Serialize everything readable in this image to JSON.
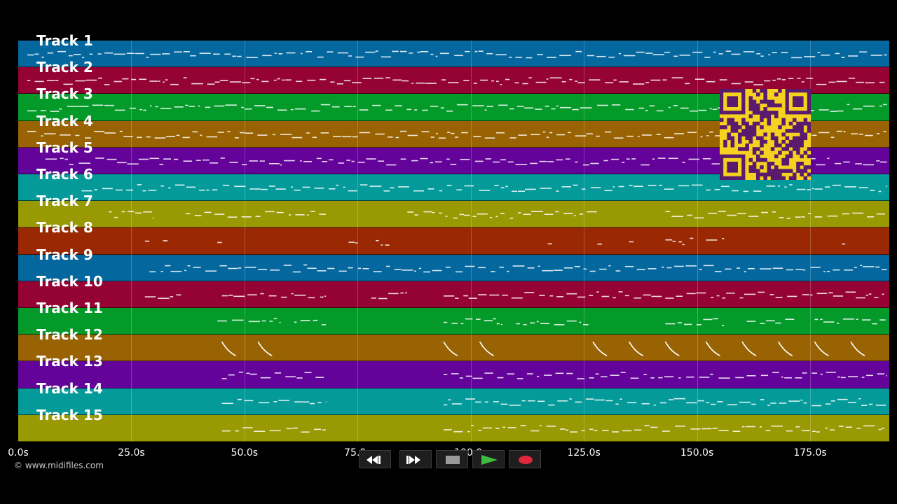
{
  "tracks": [
    {
      "label": "Track 1",
      "color": "#04679e"
    },
    {
      "label": "Track 2",
      "color": "#940333"
    },
    {
      "label": "Track 3",
      "color": "#049a29"
    },
    {
      "label": "Track 4",
      "color": "#996303"
    },
    {
      "label": "Track 5",
      "color": "#630399"
    },
    {
      "label": "Track 6",
      "color": "#049a9a"
    },
    {
      "label": "Track 7",
      "color": "#999903"
    },
    {
      "label": "Track 8",
      "color": "#992803"
    },
    {
      "label": "Track 9",
      "color": "#04679e"
    },
    {
      "label": "Track 10",
      "color": "#940333"
    },
    {
      "label": "Track 11",
      "color": "#049a29"
    },
    {
      "label": "Track 12",
      "color": "#996303"
    },
    {
      "label": "Track 13",
      "color": "#630399"
    },
    {
      "label": "Track 14",
      "color": "#049a9a"
    },
    {
      "label": "Track 15",
      "color": "#999903"
    }
  ],
  "timeline": {
    "duration_s": 192.5,
    "ticks": [
      {
        "value": 0,
        "label": "0.0s"
      },
      {
        "value": 25,
        "label": "25.0s"
      },
      {
        "value": 50,
        "label": "50.0s"
      },
      {
        "value": 75,
        "label": "75.0s"
      },
      {
        "value": 100,
        "label": "100.0s"
      },
      {
        "value": 125,
        "label": "125.0s"
      },
      {
        "value": 150,
        "label": "150.0s"
      },
      {
        "value": 175,
        "label": "175.0s"
      }
    ]
  },
  "copyright": "© www.midifiles.com",
  "controls": {
    "rewind": "rewind-icon",
    "fast_forward": "fast-forward-icon",
    "stop": "stop-icon",
    "play": "play-icon",
    "record": "record-icon",
    "play_color": "#3cbe3c",
    "record_color": "#e0283c"
  },
  "qr_color": "#f4d21f",
  "qr_module_color": "#5a1a6e"
}
